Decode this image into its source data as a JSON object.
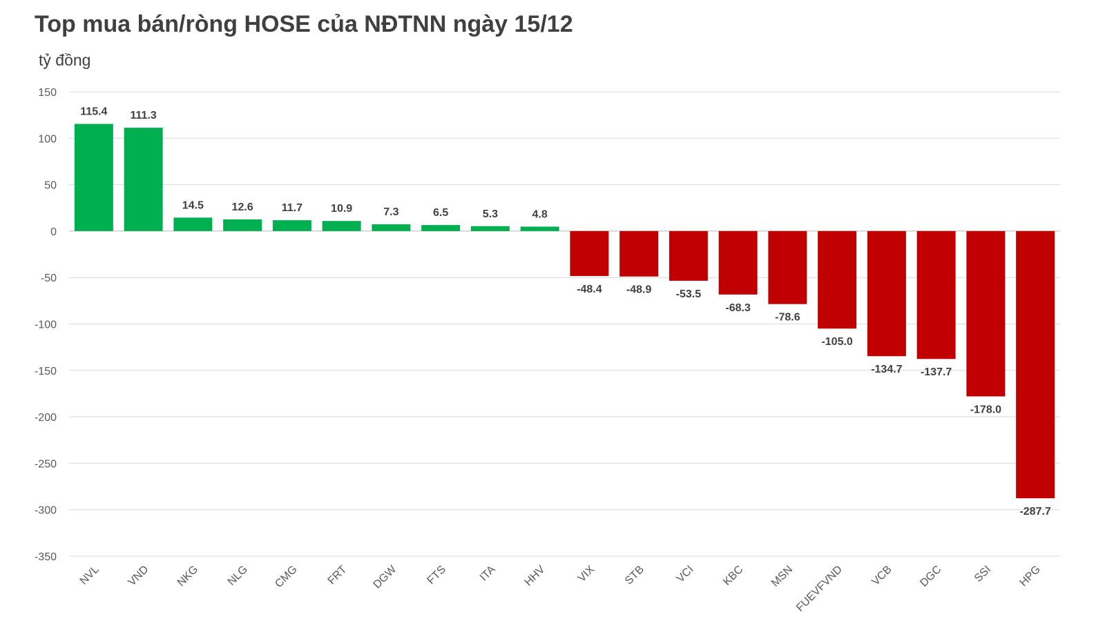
{
  "header": {
    "title": "Top mua bán/ròng HOSE của NĐTNN ngày 15/12",
    "unit": "tỷ đồng"
  },
  "chart_data": {
    "type": "bar",
    "title": "Top mua bán/ròng HOSE của NĐTNN ngày 15/12",
    "ylabel": "tỷ đồng",
    "xlabel": "",
    "categories": [
      "NVL",
      "VND",
      "NKG",
      "NLG",
      "CMG",
      "FRT",
      "DGW",
      "FTS",
      "ITA",
      "HHV",
      "VIX",
      "STB",
      "VCI",
      "KBC",
      "MSN",
      "FUEVFVND",
      "VCB",
      "DGC",
      "SSI",
      "HPG"
    ],
    "values": [
      115.4,
      111.3,
      14.5,
      12.6,
      11.7,
      10.9,
      7.3,
      6.5,
      5.3,
      4.8,
      -48.4,
      -48.9,
      -53.5,
      -68.3,
      -78.6,
      -105.0,
      -134.7,
      -137.7,
      -178.0,
      -287.7
    ],
    "data_labels": [
      "115.4",
      "111.3",
      "14.5",
      "12.6",
      "11.7",
      "10.9",
      "7.3",
      "6.5",
      "5.3",
      "4.8",
      "-48.4",
      "-48.9",
      "-53.5",
      "-68.3",
      "-78.6",
      "-105.0",
      "-134.7",
      "-137.7",
      "-178.0",
      "-287.7"
    ],
    "ylim": [
      -350,
      150
    ],
    "yticks": [
      150,
      100,
      50,
      0,
      -50,
      -100,
      -150,
      -200,
      -250,
      -300,
      -350
    ],
    "grid": true,
    "legend": "none",
    "colors": {
      "positive": "#00B050",
      "negative": "#C00000",
      "grid": "#D9D9D9",
      "axis": "#BFBFBF"
    }
  }
}
